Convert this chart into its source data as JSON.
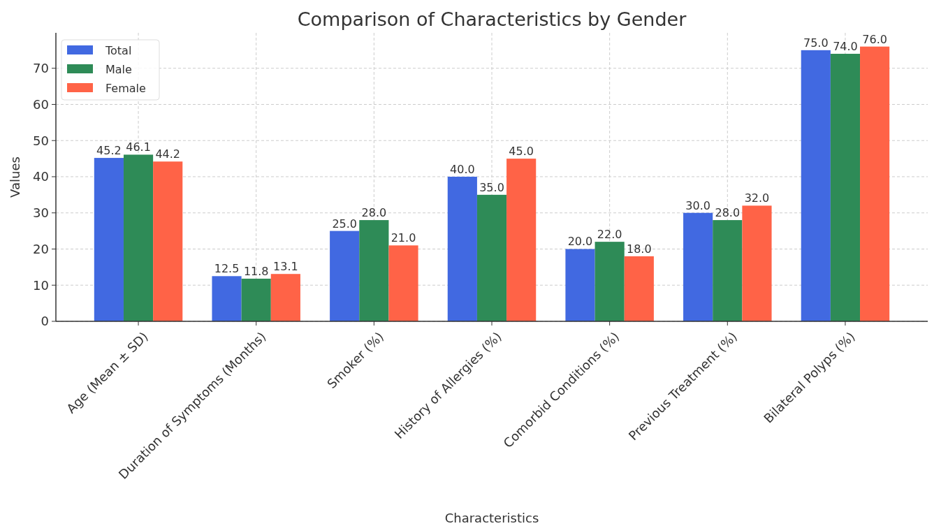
{
  "chart_data": {
    "type": "bar",
    "title": "Comparison of Characteristics by Gender",
    "xlabel": "Characteristics",
    "ylabel": "Values",
    "categories": [
      "Age (Mean ± SD)",
      "Duration of Symptoms (Months)",
      "Smoker (%)",
      "History of Allergies (%)",
      "Comorbid Conditions (%)",
      "Previous Treatment (%)",
      "Bilateral Polyps (%)"
    ],
    "series": [
      {
        "name": "Total",
        "color": "#4169e1",
        "values": [
          45.2,
          12.5,
          25,
          40,
          20,
          30,
          75
        ],
        "value_labels": [
          "45.2",
          "12.5",
          "25.0",
          "40.0",
          "20.0",
          "30.0",
          "75.0"
        ]
      },
      {
        "name": "Male",
        "color": "#2e8b57",
        "values": [
          46.1,
          11.8,
          28,
          35,
          22,
          28,
          74
        ],
        "value_labels": [
          "46.1",
          "11.8",
          "28.0",
          "35.0",
          "22.0",
          "28.0",
          "74.0"
        ]
      },
      {
        "name": "Female",
        "color": "#ff6347",
        "values": [
          44.2,
          13.1,
          21,
          45,
          18,
          32,
          76
        ],
        "value_labels": [
          "44.2",
          "13.1",
          "21.0",
          "45.0",
          "18.0",
          "32.0",
          "76.0"
        ]
      }
    ],
    "ylim": [
      0,
      79.8
    ],
    "yticks": [
      0,
      10,
      20,
      30,
      40,
      50,
      60,
      70
    ],
    "grid": true,
    "legend": "top left"
  }
}
